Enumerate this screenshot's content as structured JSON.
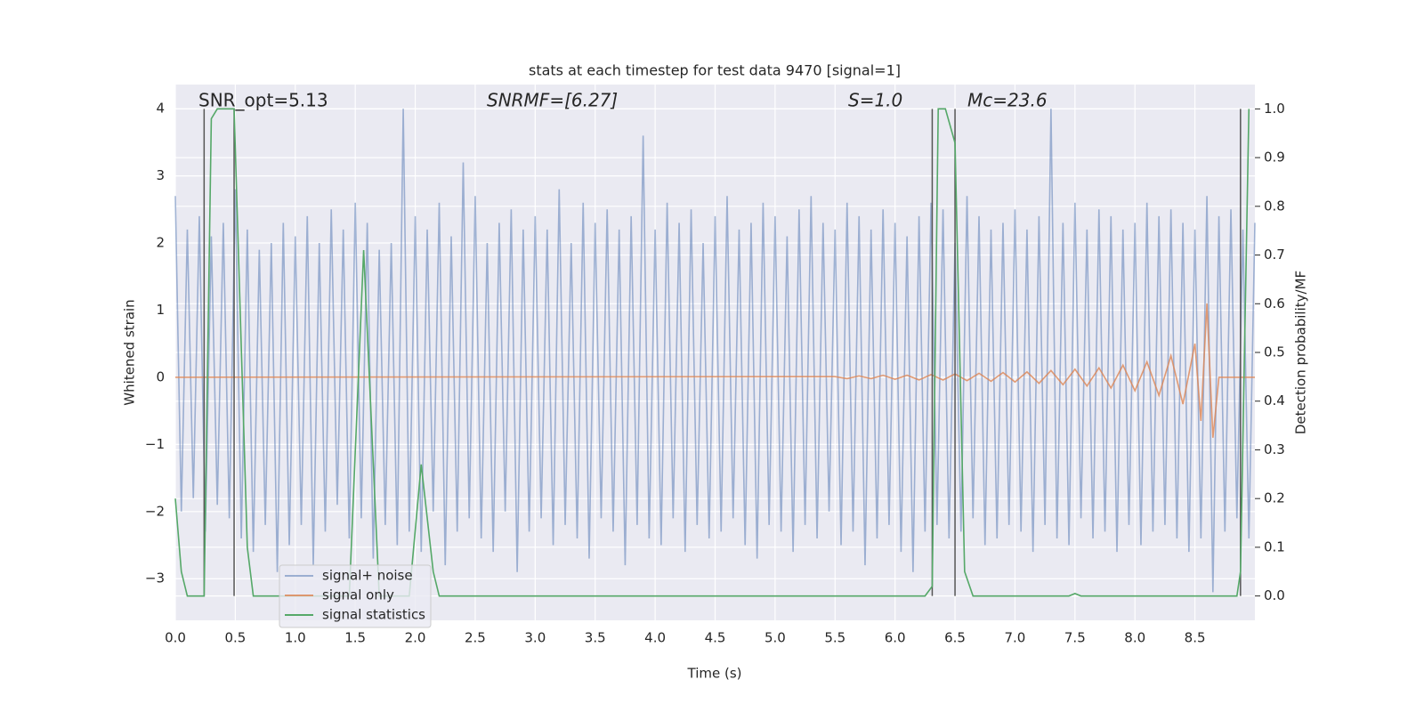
{
  "chart_data": {
    "type": "line",
    "title": "stats at each timestep for test data 9470 [signal=1]",
    "x_label": "Time (s)",
    "y_label": "Whitened strain",
    "y2_label": "Detection probability/MF",
    "annotations": [
      "SNR_opt=5.13",
      "SNRMF=[6.27]",
      "S=1.0",
      "Mc=23.6"
    ],
    "xlim": [
      0,
      9.0
    ],
    "ylim": [
      -3.62,
      4.36
    ],
    "y2lim": [
      -0.05,
      1.05
    ],
    "xticks": [
      {
        "value": 0,
        "label": "0.0"
      },
      {
        "value": 0.5,
        "label": "0.5"
      },
      {
        "value": 1,
        "label": "1.0"
      },
      {
        "value": 1.5,
        "label": "1.5"
      },
      {
        "value": 2,
        "label": "2.0"
      },
      {
        "value": 2.5,
        "label": "2.5"
      },
      {
        "value": 3,
        "label": "3.0"
      },
      {
        "value": 3.5,
        "label": "3.5"
      },
      {
        "value": 4,
        "label": "4.0"
      },
      {
        "value": 4.5,
        "label": "4.5"
      },
      {
        "value": 5,
        "label": "5.0"
      },
      {
        "value": 5.5,
        "label": "5.5"
      },
      {
        "value": 6,
        "label": "6.0"
      },
      {
        "value": 6.5,
        "label": "6.5"
      },
      {
        "value": 7,
        "label": "7.0"
      },
      {
        "value": 7.5,
        "label": "7.5"
      },
      {
        "value": 8,
        "label": "8.0"
      },
      {
        "value": 8.5,
        "label": "8.5"
      }
    ],
    "yticks": [
      {
        "value": -3,
        "label": "−3"
      },
      {
        "value": -2,
        "label": "−2"
      },
      {
        "value": -1,
        "label": "−1"
      },
      0,
      1,
      2,
      3,
      4
    ],
    "y2ticks": [
      {
        "value": 0,
        "label": "0.0"
      },
      {
        "value": 0.1,
        "label": "0.1"
      },
      {
        "value": 0.2,
        "label": "0.2"
      },
      {
        "value": 0.3,
        "label": "0.3"
      },
      {
        "value": 0.4,
        "label": "0.4"
      },
      {
        "value": 0.5,
        "label": "0.5"
      },
      {
        "value": 0.6,
        "label": "0.6"
      },
      {
        "value": 0.7,
        "label": "0.7"
      },
      {
        "value": 0.8,
        "label": "0.8"
      },
      {
        "value": 0.9,
        "label": "0.9"
      },
      {
        "value": 1,
        "label": "1.0"
      }
    ],
    "grid": true,
    "legend": "lower left",
    "vlines": [
      0.24,
      0.49,
      6.31,
      6.5,
      8.88
    ],
    "vline_color": "#555555",
    "series": [
      {
        "name": "signal+ noise",
        "color": "#4c72b0",
        "opacity": 0.5,
        "x": [
          0,
          0.05,
          0.1,
          0.15,
          0.2,
          0.25,
          0.3,
          0.35,
          0.4,
          0.45,
          0.5,
          0.55,
          0.6,
          0.65,
          0.7,
          0.75,
          0.8,
          0.85,
          0.9,
          0.95,
          1,
          1.05,
          1.1,
          1.15,
          1.2,
          1.25,
          1.3,
          1.35,
          1.4,
          1.45,
          1.5,
          1.55,
          1.6,
          1.65,
          1.7,
          1.75,
          1.8,
          1.85,
          1.9,
          1.95,
          2,
          2.05,
          2.1,
          2.15,
          2.2,
          2.25,
          2.3,
          2.35,
          2.4,
          2.45,
          2.5,
          2.55,
          2.6,
          2.65,
          2.7,
          2.75,
          2.8,
          2.85,
          2.9,
          2.95,
          3,
          3.05,
          3.1,
          3.15,
          3.2,
          3.25,
          3.3,
          3.35,
          3.4,
          3.45,
          3.5,
          3.55,
          3.6,
          3.65,
          3.7,
          3.75,
          3.8,
          3.85,
          3.9,
          3.95,
          4,
          4.05,
          4.1,
          4.15,
          4.2,
          4.25,
          4.3,
          4.35,
          4.4,
          4.45,
          4.5,
          4.55,
          4.6,
          4.65,
          4.7,
          4.75,
          4.8,
          4.85,
          4.9,
          4.95,
          5,
          5.05,
          5.1,
          5.15,
          5.2,
          5.25,
          5.3,
          5.35,
          5.4,
          5.45,
          5.5,
          5.55,
          5.6,
          5.65,
          5.7,
          5.75,
          5.8,
          5.85,
          5.9,
          5.95,
          6,
          6.05,
          6.1,
          6.15,
          6.2,
          6.25,
          6.3,
          6.35,
          6.4,
          6.45,
          6.5,
          6.55,
          6.6,
          6.65,
          6.7,
          6.75,
          6.8,
          6.85,
          6.9,
          6.95,
          7,
          7.05,
          7.1,
          7.15,
          7.2,
          7.25,
          7.3,
          7.35,
          7.4,
          7.45,
          7.5,
          7.55,
          7.6,
          7.65,
          7.7,
          7.75,
          7.8,
          7.85,
          7.9,
          7.95,
          8,
          8.05,
          8.1,
          8.15,
          8.2,
          8.25,
          8.3,
          8.35,
          8.4,
          8.45,
          8.5,
          8.55,
          8.6,
          8.65,
          8.7,
          8.75,
          8.8,
          8.85,
          8.9,
          8.95,
          9
        ],
        "values": [
          2.7,
          -2.0,
          2.2,
          -1.8,
          2.4,
          -2.3,
          2.1,
          -1.9,
          2.3,
          -2.1,
          2.8,
          -2.4,
          2.2,
          -2.6,
          1.9,
          -2.2,
          2.0,
          -2.9,
          2.3,
          -2.5,
          2.1,
          -2.2,
          2.4,
          -2.8,
          2.0,
          -2.3,
          2.5,
          -1.9,
          2.2,
          -2.4,
          2.6,
          -2.1,
          2.3,
          -2.7,
          1.9,
          -2.2,
          2.0,
          -2.5,
          4.0,
          -2.3,
          2.4,
          -2.6,
          2.2,
          -2.0,
          2.6,
          -2.8,
          2.1,
          -2.3,
          3.2,
          -2.1,
          2.7,
          -2.4,
          2.0,
          -2.6,
          2.3,
          -2.0,
          2.5,
          -2.9,
          2.2,
          -2.3,
          2.4,
          -2.1,
          2.2,
          -2.5,
          2.8,
          -2.2,
          2.0,
          -2.4,
          2.6,
          -2.7,
          2.3,
          -2.1,
          2.5,
          -2.3,
          2.2,
          -2.8,
          2.4,
          -2.2,
          3.6,
          -2.4,
          2.2,
          -2.5,
          2.6,
          -2.1,
          2.3,
          -2.6,
          2.5,
          -2.2,
          2.0,
          -2.4,
          2.4,
          -2.3,
          2.7,
          -2.1,
          2.2,
          -2.5,
          2.3,
          -2.7,
          2.6,
          -2.2,
          2.4,
          -2.3,
          2.1,
          -2.6,
          2.5,
          -2.2,
          2.7,
          -2.4,
          2.3,
          -2.0,
          2.2,
          -2.5,
          2.6,
          -2.3,
          2.4,
          -2.8,
          2.2,
          -2.4,
          2.5,
          -2.2,
          2.3,
          -2.6,
          2.1,
          -2.9,
          2.4,
          -2.3,
          2.6,
          -2.2,
          2.5,
          -2.4,
          2.0,
          -2.3,
          2.7,
          -2.1,
          2.4,
          -2.5,
          2.2,
          -2.4,
          2.3,
          -2.2,
          2.5,
          -2.3,
          2.2,
          -2.6,
          2.4,
          -2.2,
          4.0,
          -2.4,
          2.3,
          -2.5,
          2.6,
          -2.1,
          2.2,
          -2.4,
          2.5,
          -2.3,
          2.4,
          -2.6,
          2.2,
          -2.2,
          2.3,
          -2.5,
          2.6,
          -2.3,
          2.4,
          -2.2,
          2.5,
          -2.4,
          2.3,
          -2.6,
          2.2,
          -2.4,
          2.7,
          -3.2,
          2.4,
          -2.3,
          2.5,
          -2.1,
          2.2,
          -2.4,
          2.3
        ]
      },
      {
        "name": "signal only",
        "color": "#dd8452",
        "opacity": 0.8,
        "x": [
          0,
          5.5,
          5.6,
          5.7,
          5.8,
          5.9,
          6,
          6.1,
          6.2,
          6.3,
          6.4,
          6.5,
          6.6,
          6.7,
          6.8,
          6.9,
          7,
          7.1,
          7.2,
          7.3,
          7.4,
          7.5,
          7.6,
          7.7,
          7.8,
          7.9,
          8,
          8.1,
          8.2,
          8.3,
          8.4,
          8.5,
          8.55,
          8.6,
          8.65,
          8.7,
          9
        ],
        "values": [
          0,
          0.01,
          -0.02,
          0.02,
          -0.02,
          0.03,
          -0.03,
          0.03,
          -0.04,
          0.04,
          -0.04,
          0.05,
          -0.05,
          0.06,
          -0.06,
          0.07,
          -0.07,
          0.08,
          -0.09,
          0.1,
          -0.11,
          0.12,
          -0.13,
          0.14,
          -0.16,
          0.18,
          -0.2,
          0.23,
          -0.27,
          0.32,
          -0.4,
          0.5,
          -0.65,
          1.1,
          -0.9,
          0,
          0
        ]
      },
      {
        "name": "signal statistics",
        "color": "#55a868",
        "opacity": 1,
        "axis": "y2",
        "x": [
          0,
          0.05,
          0.1,
          0.24,
          0.3,
          0.35,
          0.49,
          0.6,
          0.65,
          1.45,
          1.57,
          1.7,
          1.95,
          2.05,
          2.15,
          2.2,
          6.25,
          6.31,
          6.36,
          6.42,
          6.5,
          6.58,
          6.65,
          7.45,
          7.5,
          7.55,
          8.85,
          8.88,
          8.95
        ],
        "values": [
          0.2,
          0.05,
          0,
          0,
          0.98,
          1,
          1,
          0.1,
          0,
          0,
          0.71,
          0,
          0,
          0.27,
          0.05,
          0,
          0,
          0.02,
          1,
          1,
          0.93,
          0.05,
          0,
          0,
          0.005,
          0,
          0,
          0.05,
          1
        ]
      }
    ]
  }
}
